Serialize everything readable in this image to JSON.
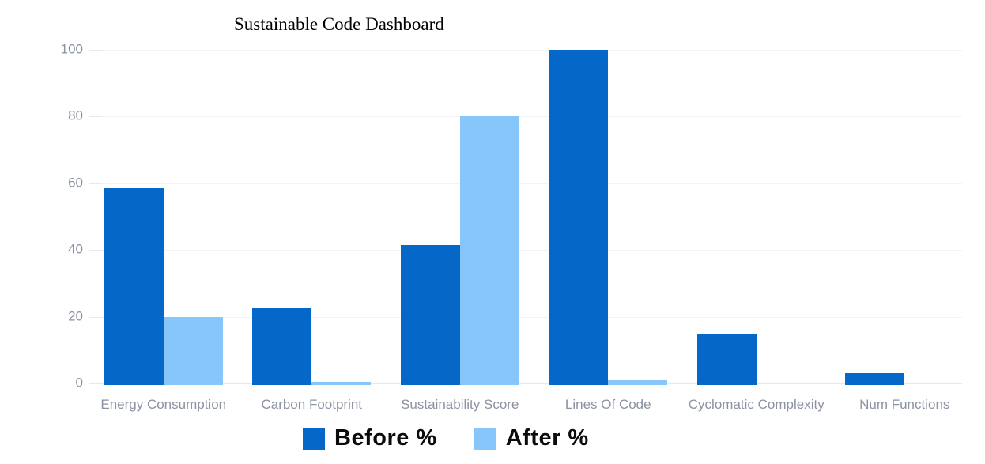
{
  "chart_data": {
    "type": "bar",
    "title": "Sustainable Code Dashboard",
    "categories": [
      "Energy Consumption",
      "Carbon Footprint",
      "Sustainability Score",
      "Lines Of Code",
      "Cyclomatic Complexity",
      "Num Functions"
    ],
    "series": [
      {
        "name": "Before %",
        "color": "#0568C8",
        "values": [
          58.5,
          22.5,
          41.5,
          100,
          15,
          3
        ]
      },
      {
        "name": "After %",
        "color": "#86C6FB",
        "values": [
          20,
          0.5,
          80,
          1,
          0,
          0
        ]
      }
    ],
    "xlabel": "",
    "ylabel": "",
    "ylim": [
      0,
      100
    ],
    "yticks": [
      0,
      20,
      40,
      60,
      80,
      100
    ],
    "grid": true,
    "legend_position": "bottom",
    "colors": {
      "background": "#FFFFFF",
      "title_text": "#000000",
      "axis_label": "#8B92A2",
      "gridline": "#F2F3F6",
      "axis_line": "#E5E8EE",
      "legend_text": "#0B0B0B"
    }
  }
}
